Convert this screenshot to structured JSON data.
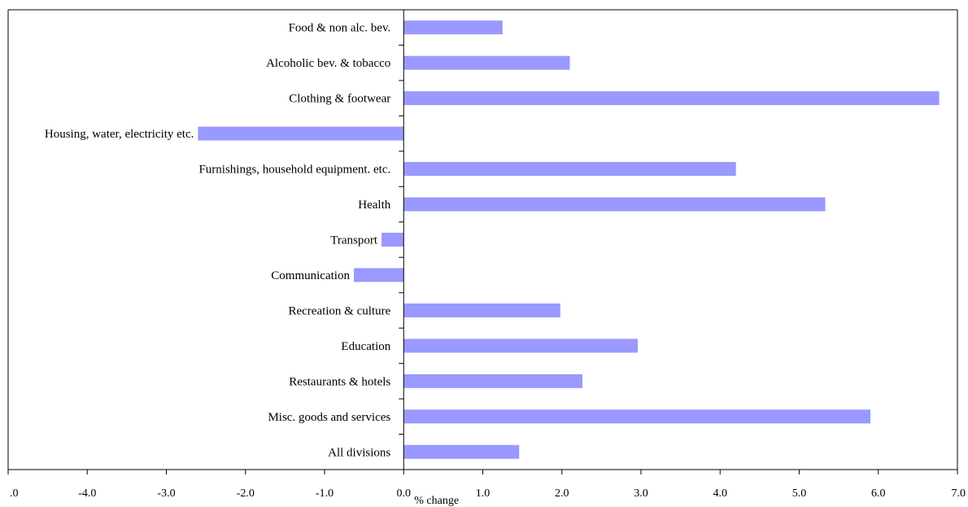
{
  "chart_data": {
    "type": "bar",
    "orientation": "horizontal",
    "categories": [
      "Food & non alc. bev.",
      "Alcoholic bev. & tobacco",
      "Clothing & footwear",
      "Housing, water, electricity   etc.",
      "Furnishings,  household equipment. etc.",
      "Health",
      "Transport",
      "Communication",
      "Recreation & culture",
      "Education",
      "Restaurants & hotels",
      "Misc. goods and services",
      "All divisions"
    ],
    "values": [
      1.25,
      2.1,
      6.77,
      -2.6,
      4.2,
      5.33,
      -0.28,
      -0.63,
      1.98,
      2.96,
      2.26,
      5.9,
      1.46
    ],
    "xlabel": "% change",
    "ylabel": "",
    "xlim": [
      -5.0,
      7.0
    ],
    "ticks": [
      ".0",
      "-4.0",
      "-3.0",
      "-2.0",
      "-1.0",
      "0.0",
      "1.0",
      "2.0",
      "3.0",
      "4.0",
      "5.0",
      "6.0",
      "7.0"
    ],
    "grid": false,
    "legend": "none",
    "colors": {
      "bar": "#9999ff",
      "axis": "#000000"
    }
  }
}
